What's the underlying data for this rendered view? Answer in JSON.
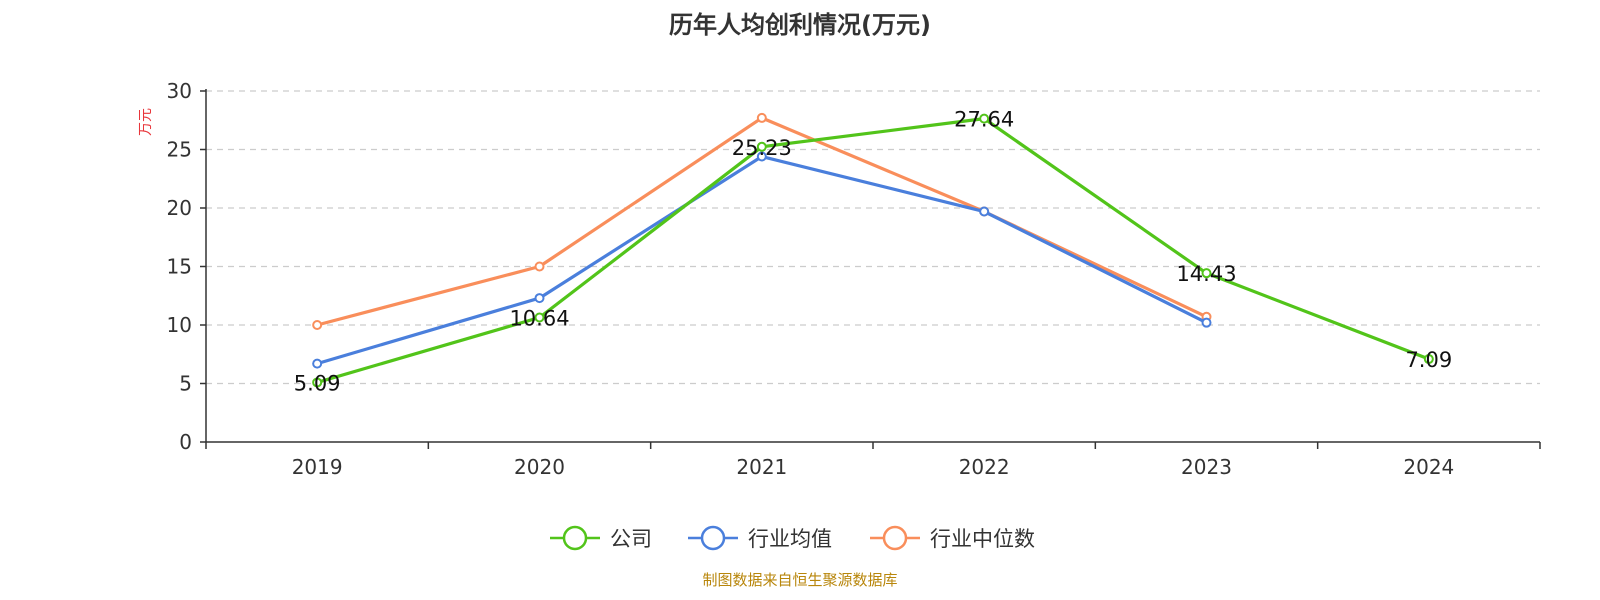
{
  "chart_data": {
    "type": "line",
    "title": "历年人均创利情况(万元)",
    "ylabel": "万元",
    "ylim": [
      0,
      30
    ],
    "yticks": [
      0,
      5,
      10,
      15,
      20,
      25,
      30
    ],
    "categories": [
      "2019",
      "2020",
      "2021",
      "2022",
      "2023",
      "2024"
    ],
    "grid": true,
    "legend_position": "bottom-center",
    "series": [
      {
        "name": "公司",
        "color": "#52c41a",
        "values": [
          5.09,
          10.64,
          25.23,
          27.64,
          14.43,
          7.09
        ],
        "labels": [
          "5.09",
          "10.64",
          "25.23",
          "27.64",
          "14.43",
          "7.09"
        ]
      },
      {
        "name": "行业均值",
        "color": "#4a7fdc",
        "values": [
          6.7,
          12.3,
          24.4,
          19.7,
          10.2,
          null
        ]
      },
      {
        "name": "行业中位数",
        "color": "#f98e5b",
        "values": [
          10.0,
          15.0,
          27.7,
          19.7,
          10.7,
          null
        ]
      }
    ]
  },
  "source_text": "制图数据来自恒生聚源数据库",
  "colors": {
    "unit_label": "#e8363b",
    "source_text": "#b8860b",
    "axis": "#333333",
    "grid": "#cccccc"
  }
}
